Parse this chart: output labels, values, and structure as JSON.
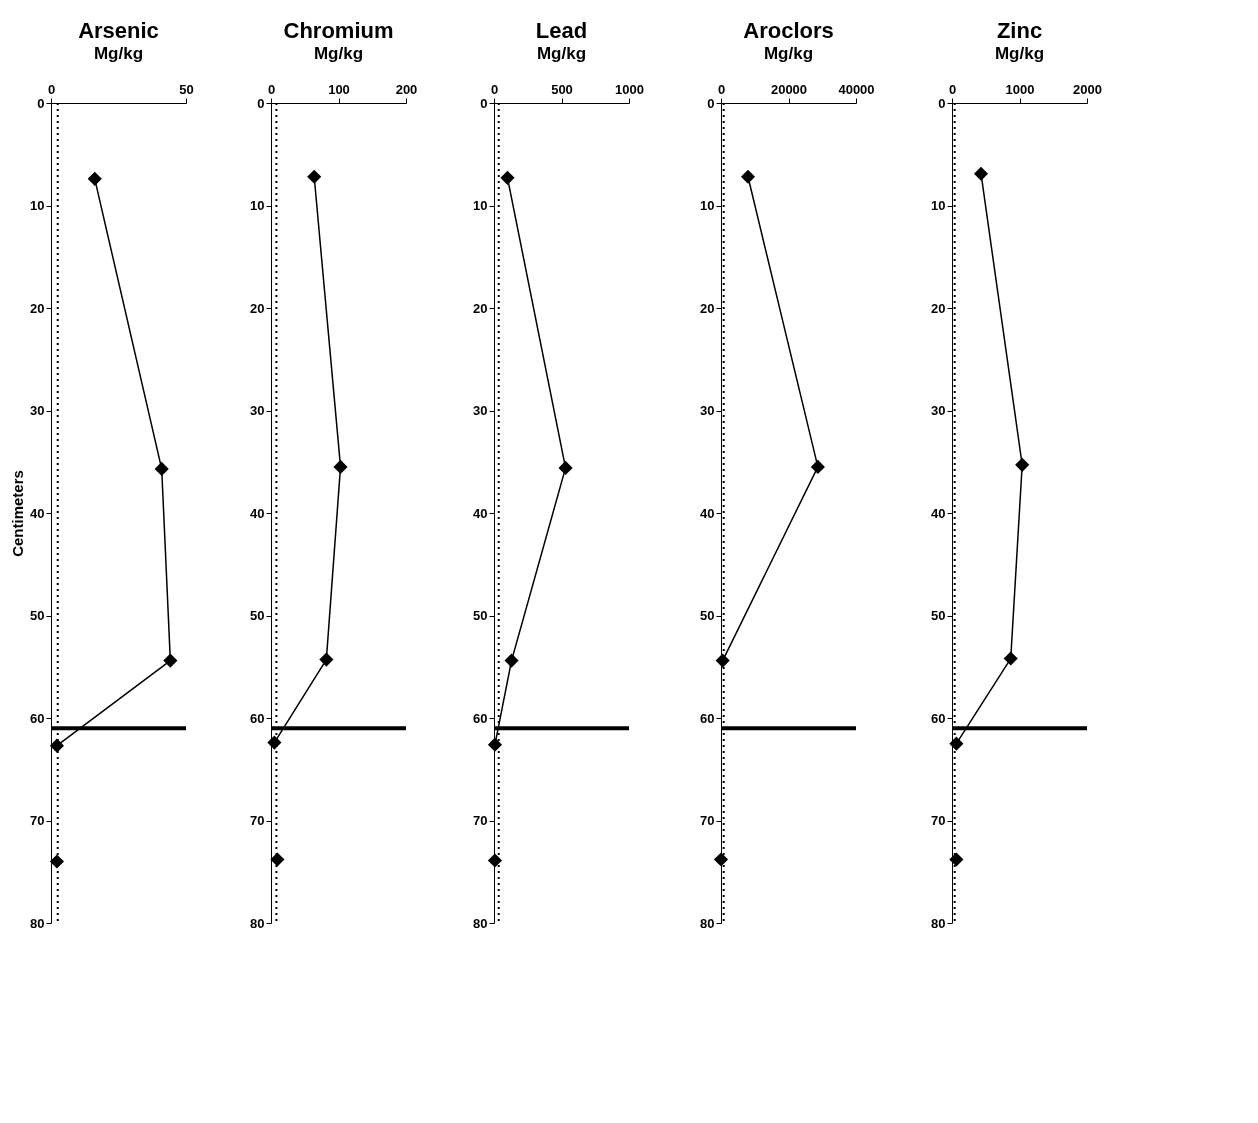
{
  "chart_data": [
    {
      "type": "line",
      "title": "Arsenic",
      "subtitle": "Mg/kg",
      "ylabel": "Centimeters",
      "xlim": [
        0,
        50
      ],
      "xticks": [
        0,
        50
      ],
      "ylim": [
        80,
        0
      ],
      "yticks": [
        0,
        10,
        20,
        30,
        40,
        50,
        60,
        70,
        80
      ],
      "grid": false,
      "marker": "diamond",
      "line_style": "solid",
      "series": [
        {
          "type": "line",
          "color": "#000000",
          "x": [
            16.2,
            41,
            44.2,
            2.2
          ],
          "values": [
            7.4,
            35.7,
            54.4,
            62.7
          ]
        },
        {
          "type": "scatter",
          "color": "#000000",
          "x": [
            2.2
          ],
          "values": [
            74
          ]
        }
      ],
      "ref_lines": [
        {
          "axis": "x",
          "value": 2.5,
          "line_style": "dotted",
          "color": "#000000"
        },
        {
          "axis": "y",
          "value": 61,
          "color": "#000000"
        }
      ]
    },
    {
      "type": "line",
      "title": "Chromium",
      "subtitle": "Mg/kg",
      "xlim": [
        0,
        200
      ],
      "xticks": [
        0,
        100,
        200
      ],
      "ylim": [
        80,
        0
      ],
      "yticks": [
        0,
        10,
        20,
        30,
        40,
        50,
        60,
        70,
        80
      ],
      "grid": false,
      "marker": "diamond",
      "line_style": "solid",
      "series": [
        {
          "type": "line",
          "color": "#000000",
          "x": [
            64,
            103,
            82,
            5
          ],
          "values": [
            7.2,
            35.5,
            54.3,
            62.4
          ]
        },
        {
          "type": "scatter",
          "color": "#000000",
          "x": [
            9.5
          ],
          "values": [
            73.8
          ]
        }
      ],
      "ref_lines": [
        {
          "axis": "x",
          "value": 8,
          "line_style": "dotted",
          "color": "#000000"
        },
        {
          "axis": "y",
          "value": 61,
          "color": "#000000"
        }
      ]
    },
    {
      "type": "line",
      "title": "Lead",
      "subtitle": "Mg/kg",
      "xlim": [
        0,
        1000
      ],
      "xticks": [
        0,
        500,
        1000
      ],
      "ylim": [
        80,
        0
      ],
      "yticks": [
        0,
        10,
        20,
        30,
        40,
        50,
        60,
        70,
        80
      ],
      "grid": false,
      "marker": "diamond",
      "line_style": "solid",
      "series": [
        {
          "type": "line",
          "color": "#000000",
          "x": [
            100,
            530,
            130,
            7
          ],
          "values": [
            7.3,
            35.6,
            54.4,
            62.6
          ]
        },
        {
          "type": "scatter",
          "color": "#000000",
          "x": [
            7
          ],
          "values": [
            73.9
          ]
        }
      ],
      "ref_lines": [
        {
          "axis": "x",
          "value": 35,
          "line_style": "dotted",
          "color": "#000000"
        },
        {
          "axis": "y",
          "value": 61,
          "color": "#000000"
        }
      ]
    },
    {
      "type": "line",
      "title": "Aroclors",
      "subtitle": "Mg/kg",
      "xlim": [
        0,
        40000
      ],
      "xticks": [
        0,
        20000,
        40000
      ],
      "ylim": [
        80,
        0
      ],
      "yticks": [
        0,
        10,
        20,
        30,
        40,
        50,
        60,
        70,
        80
      ],
      "grid": false,
      "marker": "diamond",
      "line_style": "solid",
      "series": [
        {
          "type": "line",
          "color": "#000000",
          "x": [
            8000,
            28700,
            500
          ],
          "values": [
            7.2,
            35.5,
            54.4
          ]
        },
        {
          "type": "scatter",
          "color": "#000000",
          "x": [
            0
          ],
          "values": [
            73.8
          ]
        }
      ],
      "ref_lines": [
        {
          "axis": "x",
          "value": 800,
          "line_style": "dotted",
          "color": "#000000"
        },
        {
          "axis": "y",
          "value": 61,
          "color": "#000000"
        }
      ]
    },
    {
      "type": "line",
      "title": "Zinc",
      "subtitle": "Mg/kg",
      "xlim": [
        0,
        2000
      ],
      "xticks": [
        0,
        1000,
        2000
      ],
      "ylim": [
        80,
        0
      ],
      "yticks": [
        0,
        10,
        20,
        30,
        40,
        50,
        60,
        70,
        80
      ],
      "grid": false,
      "marker": "diamond",
      "line_style": "solid",
      "series": [
        {
          "type": "line",
          "color": "#000000",
          "x": [
            430,
            1040,
            870,
            65
          ],
          "values": [
            6.9,
            35.3,
            54.2,
            62.5
          ]
        },
        {
          "type": "scatter",
          "color": "#000000",
          "x": [
            65
          ],
          "values": [
            73.8
          ]
        }
      ],
      "ref_lines": [
        {
          "axis": "x",
          "value": 40,
          "line_style": "dotted",
          "color": "#000000"
        },
        {
          "axis": "y",
          "value": 61,
          "color": "#000000"
        }
      ]
    }
  ]
}
